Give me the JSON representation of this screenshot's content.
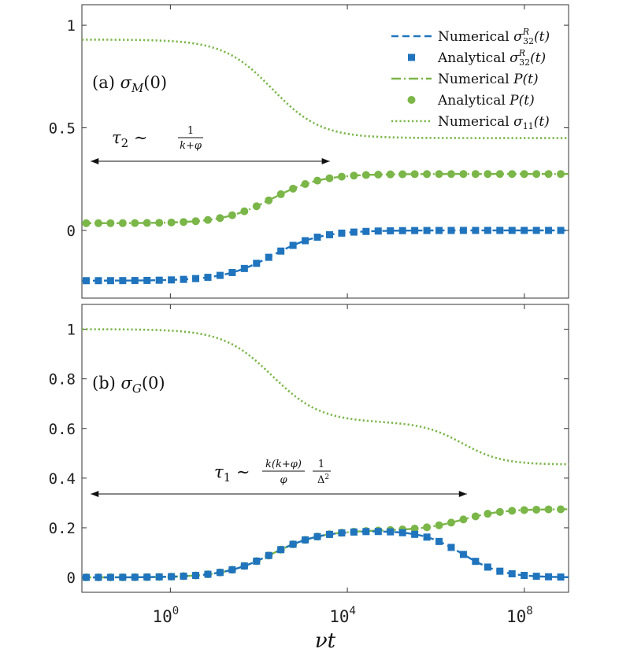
{
  "chart_data": [
    {
      "type": "line",
      "panel_label": "(a)",
      "panel_condition": "σ_M(0)",
      "xscale": "log",
      "xlim_exp": [
        -2,
        9
      ],
      "ylim": [
        -0.33,
        1.1
      ],
      "yticks": [
        0,
        0.5,
        1
      ],
      "ytick_labels": [
        "0",
        "0.5",
        "1"
      ],
      "annotation": {
        "text": "τ₂ ∼ 1/(k+φ)",
        "arrow_x_exp": [
          -1.8,
          3.6
        ]
      },
      "legend": {
        "position": "top-right",
        "entries": [
          {
            "label": "Numerical σ32R(t)",
            "series": "num_s32"
          },
          {
            "label": "Analytical σ32R(t)",
            "series": "ana_s32"
          },
          {
            "label": "Numerical P(t)",
            "series": "num_P"
          },
          {
            "label": "Analytical P(t)",
            "series": "ana_P"
          },
          {
            "label": "Numerical σ11(t)",
            "series": "num_s11"
          }
        ]
      },
      "series": [
        {
          "name": "Numerical σ11(t)",
          "key": "num_s11",
          "style": "dotted",
          "color": "#7ab648",
          "stages": [
            {
              "from": 0.93,
              "to": 0.45,
              "center_exp": 2.3,
              "width": 0.55
            }
          ]
        },
        {
          "name": "Numerical P(t)",
          "key": "num_P",
          "style": "dashdot",
          "color": "#7ab648",
          "stages": [
            {
              "from": 0.035,
              "to": 0.275,
              "center_exp": 2.3,
              "width": 0.55
            }
          ]
        },
        {
          "name": "Analytical P(t)",
          "key": "ana_P",
          "style": "circle",
          "color": "#7ab648",
          "stages": [
            {
              "from": 0.035,
              "to": 0.275,
              "center_exp": 2.3,
              "width": 0.55
            }
          ]
        },
        {
          "name": "Numerical σ32R(t)",
          "key": "num_s32",
          "style": "dashed",
          "color": "#1f74bd",
          "stages": [
            {
              "from": -0.245,
              "to": 0.0,
              "center_exp": 2.3,
              "width": 0.55
            }
          ]
        },
        {
          "name": "Analytical σ32R(t)",
          "key": "ana_s32",
          "style": "square",
          "color": "#1f74bd",
          "stages": [
            {
              "from": -0.245,
              "to": 0.0,
              "center_exp": 2.3,
              "width": 0.55
            }
          ]
        }
      ]
    },
    {
      "type": "line",
      "panel_label": "(b)",
      "panel_condition": "σ_G(0)",
      "xscale": "log",
      "xlim_exp": [
        -2,
        9
      ],
      "ylim": [
        -0.06,
        1.1
      ],
      "yticks": [
        0,
        0.2,
        0.4,
        0.6,
        0.8,
        1
      ],
      "ytick_labels": [
        "0",
        "0.2",
        "0.4",
        "0.6",
        "0.8",
        "1"
      ],
      "xticks_exp": [
        0,
        4,
        8
      ],
      "xtick_base": "10",
      "xtick_exponents": [
        "0",
        "4",
        "8"
      ],
      "xlabel": "νt",
      "annotation": {
        "text": "τ₁ ∼ k(k+φ)/φ · 1/Δ²",
        "arrow_x_exp": [
          -1.8,
          6.7
        ]
      },
      "series": [
        {
          "name": "Numerical σ11(t)",
          "key": "num_s11",
          "style": "dotted",
          "color": "#7ab648",
          "stages": [
            {
              "from": 1.0,
              "to": 0.625,
              "center_exp": 2.3,
              "width": 0.55
            },
            {
              "from": 0.625,
              "to": 0.455,
              "center_exp": 6.6,
              "width": 0.45
            }
          ]
        },
        {
          "name": "Numerical P(t)",
          "key": "num_P",
          "style": "dashdot",
          "color": "#7ab648",
          "stages": [
            {
              "from": 0.0,
              "to": 0.19,
              "center_exp": 2.3,
              "width": 0.55
            },
            {
              "from": 0.19,
              "to": 0.275,
              "center_exp": 6.6,
              "width": 0.45
            }
          ]
        },
        {
          "name": "Analytical P(t)",
          "key": "ana_P",
          "style": "circle",
          "color": "#7ab648",
          "stages": [
            {
              "from": 0.0,
              "to": 0.19,
              "center_exp": 2.3,
              "width": 0.55
            },
            {
              "from": 0.19,
              "to": 0.275,
              "center_exp": 6.6,
              "width": 0.45
            }
          ]
        },
        {
          "name": "Numerical σ32R(t)",
          "key": "num_s32",
          "style": "dashed",
          "color": "#1f74bd",
          "stages": [
            {
              "from": 0.0,
              "to": 0.19,
              "center_exp": 2.3,
              "width": 0.55
            },
            {
              "from": 0.19,
              "to": 0.0,
              "center_exp": 6.6,
              "width": 0.45
            }
          ]
        },
        {
          "name": "Analytical σ32R(t)",
          "key": "ana_s32",
          "style": "square",
          "color": "#1f74bd",
          "stages": [
            {
              "from": 0.0,
              "to": 0.19,
              "center_exp": 2.3,
              "width": 0.55
            },
            {
              "from": 0.19,
              "to": 0.0,
              "center_exp": 6.6,
              "width": 0.45
            }
          ]
        }
      ]
    }
  ],
  "labels": {
    "panel_a": {
      "prefix": "(a) ",
      "sym": "σ",
      "sub": "M",
      "suffix": "(0)"
    },
    "panel_b": {
      "prefix": "(b) ",
      "sym": "σ",
      "sub": "G",
      "suffix": "(0)"
    },
    "tau2": {
      "sym": "τ",
      "sub": "2",
      "rel": " ∼ ",
      "num": "1",
      "den": "k+φ"
    },
    "tau1": {
      "sym": "τ",
      "sub": "1",
      "rel": " ∼ ",
      "num": "k(k+φ)",
      "den": "φ",
      "num2": "1",
      "den2": "Δ",
      "den2_sup": "2"
    },
    "xlabel": "νt"
  },
  "legend_items": [
    {
      "word": "Numerical ",
      "sym": "σ",
      "sup": "R",
      "sub": "32",
      "arg": "(t)"
    },
    {
      "word": "Analytical ",
      "sym": "σ",
      "sup": "R",
      "sub": "32",
      "arg": "(t)"
    },
    {
      "word": "Numerical ",
      "sym": "P",
      "sup": "",
      "sub": "",
      "arg": "(t)"
    },
    {
      "word": "Analytical ",
      "sym": "P",
      "sup": "",
      "sub": "",
      "arg": "(t)"
    },
    {
      "word": "Numerical ",
      "sym": "σ",
      "sup": "",
      "sub": "11",
      "arg": "(t)"
    }
  ],
  "colors": {
    "green": "#7ab648",
    "blue": "#1f74bd",
    "frame": "#333333"
  }
}
